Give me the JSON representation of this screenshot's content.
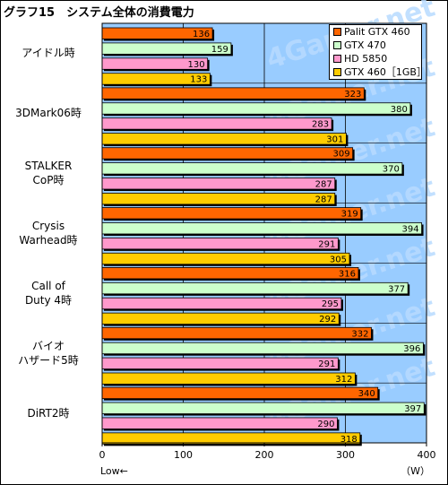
{
  "title": "グラフ15　システム全体の消費電力",
  "watermark": "4Gamer.net",
  "chart_data": {
    "type": "bar",
    "orientation": "horizontal",
    "title": "グラフ15　システム全体の消費電力",
    "categories": [
      "アイドル時",
      "3DMark06時",
      "STALKER\nCoP時",
      "Crysis\nWarhead時",
      "Call of\nDuty 4時",
      "バイオ\nハザード5時",
      "DiRT2時"
    ],
    "series": [
      {
        "name": "Palit GTX 460",
        "color": "#ff6600",
        "values": [
          136,
          323,
          309,
          319,
          316,
          332,
          340
        ]
      },
      {
        "name": "GTX 470",
        "color": "#ccffcc",
        "values": [
          159,
          380,
          370,
          394,
          377,
          396,
          397
        ]
      },
      {
        "name": "HD 5850",
        "color": "#ff99cc",
        "values": [
          130,
          283,
          287,
          291,
          295,
          291,
          290
        ]
      },
      {
        "name": "GTX 460［1GB］",
        "color": "#ffcc00",
        "values": [
          133,
          301,
          287,
          305,
          292,
          312,
          318
        ]
      }
    ],
    "xlim": [
      0,
      400
    ],
    "xticks": [
      0,
      100,
      200,
      300,
      400
    ],
    "xlabel_left": "Low←",
    "unit": "（W）",
    "grid": true,
    "legend": "top-right",
    "plot_bg": "#99ccff"
  }
}
